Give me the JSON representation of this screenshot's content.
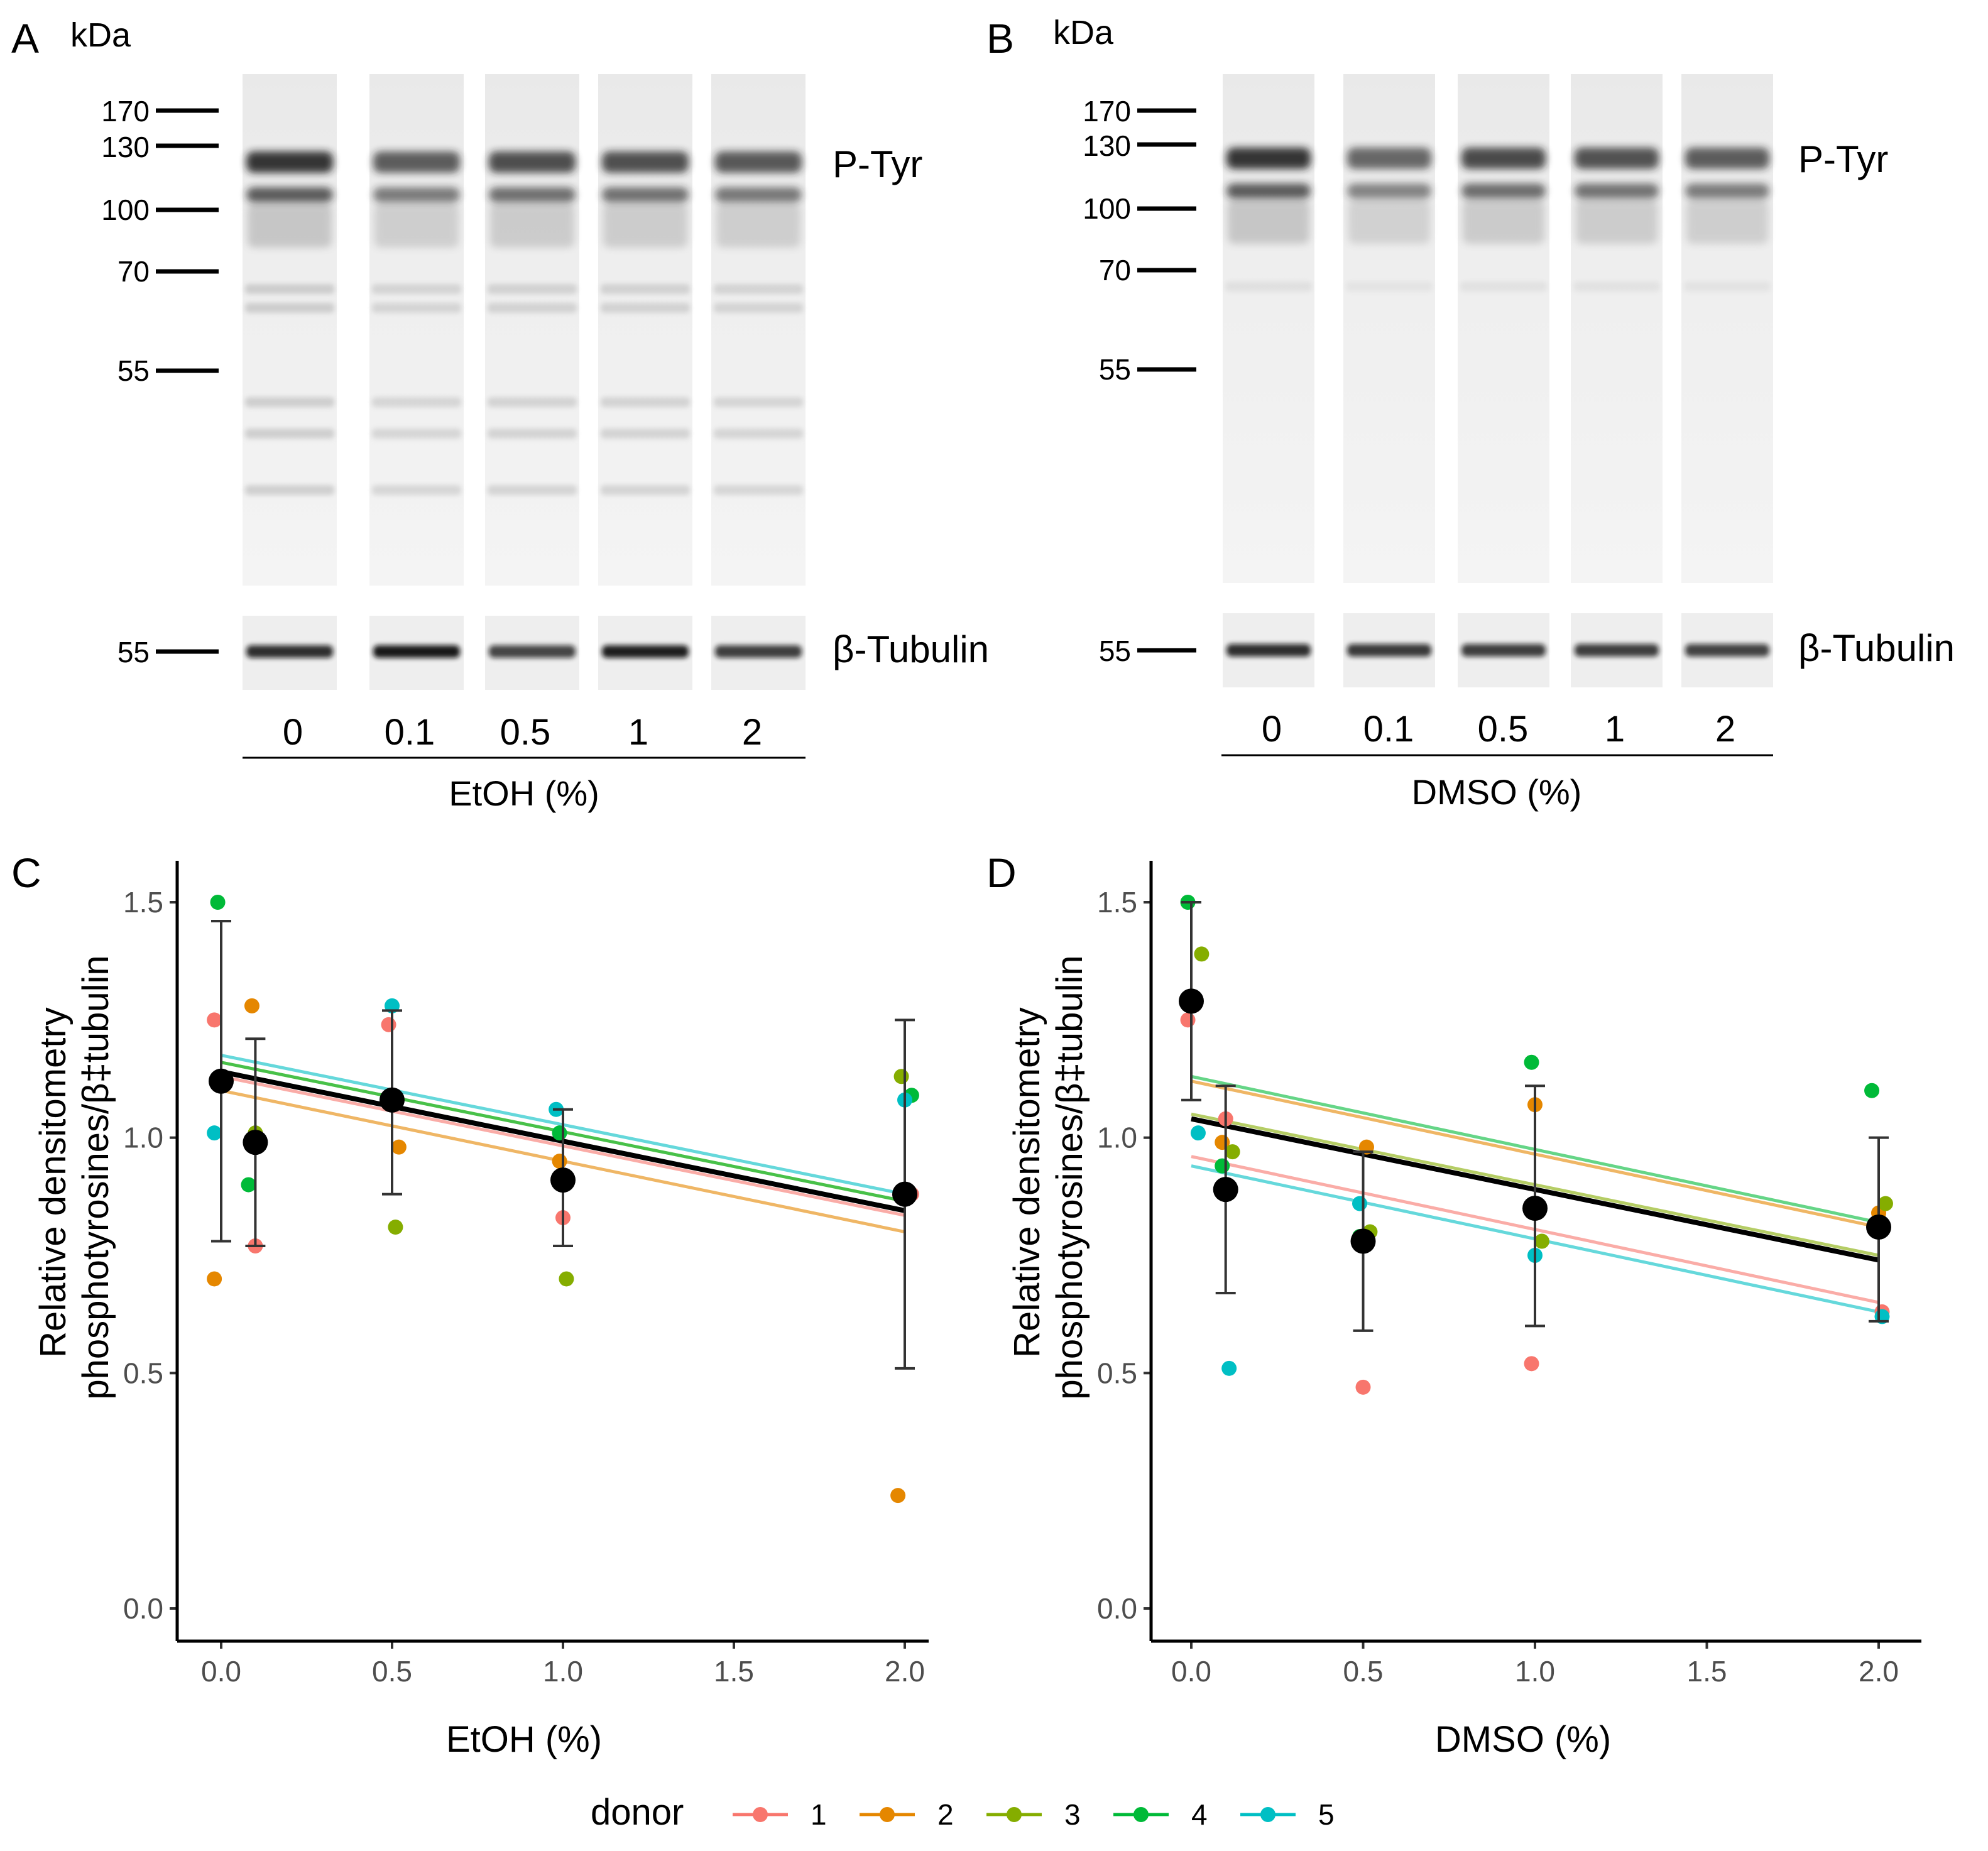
{
  "panels": {
    "A": "A",
    "B": "B",
    "C": "C",
    "D": "D"
  },
  "blots": [
    {
      "panel": "A",
      "kda_label": "kDa",
      "mw_markers": [
        "170",
        "130",
        "100",
        "70",
        "55"
      ],
      "tubulin_marker": "55",
      "upper_label": "P-Tyr",
      "lower_label": "β-Tubulin",
      "lanes": [
        "0",
        "0.1",
        "0.5",
        "1",
        "2"
      ],
      "condition": "EtOH (%)",
      "ptyr_intensity": [
        1.0,
        0.78,
        0.86,
        0.85,
        0.8
      ],
      "tubulin_intensity": [
        0.85,
        0.95,
        0.75,
        0.92,
        0.78
      ]
    },
    {
      "panel": "B",
      "kda_label": "kDa",
      "mw_markers": [
        "170",
        "130",
        "100",
        "70",
        "55"
      ],
      "tubulin_marker": "55",
      "upper_label": "P-Tyr",
      "lower_label": "β-Tubulin",
      "lanes": [
        "0",
        "0.1",
        "0.5",
        "1",
        "2"
      ],
      "condition": "DMSO (%)",
      "ptyr_intensity": [
        1.0,
        0.72,
        0.88,
        0.84,
        0.78
      ],
      "tubulin_intensity": [
        0.85,
        0.8,
        0.78,
        0.78,
        0.76
      ]
    }
  ],
  "legend": {
    "title": "donor",
    "items": [
      "1",
      "2",
      "3",
      "4",
      "5"
    ]
  },
  "colors": {
    "donor_1": "#F8766D",
    "donor_2": "#E58700",
    "donor_3": "#85AD00",
    "donor_4": "#00BA38",
    "donor_5": "#00BFC4",
    "mean": "#000000",
    "axis": "#000000",
    "tick_text": "#4d4d4d"
  },
  "chart_data": [
    {
      "panel": "C",
      "type": "scatter",
      "xlabel": "EtOH (%)",
      "ylabel": "Relative densitometry phosphotyrosines/β‡tubulin",
      "xlim": [
        -0.1,
        2.1
      ],
      "ylim": [
        -0.07,
        1.57
      ],
      "xticks": [
        "0.0",
        "0.5",
        "1.0",
        "1.5",
        "2.0"
      ],
      "yticks": [
        "0.0",
        "0.5",
        "1.0",
        "1.5"
      ],
      "xtick_values": [
        0,
        0.5,
        1,
        1.5,
        2
      ],
      "ytick_values": [
        0,
        0.5,
        1,
        1.5
      ],
      "series": [
        {
          "name": "1",
          "points": [
            [
              -0.02,
              1.25
            ],
            [
              0.1,
              0.77
            ],
            [
              0.49,
              1.24
            ],
            [
              1.0,
              0.83
            ],
            [
              2.02,
              0.88
            ]
          ],
          "fit": [
            1.13,
            0.835
          ]
        },
        {
          "name": "2",
          "points": [
            [
              -0.02,
              0.7
            ],
            [
              0.09,
              1.28
            ],
            [
              0.52,
              0.98
            ],
            [
              0.99,
              0.95
            ],
            [
              1.98,
              0.24
            ]
          ],
          "fit": [
            1.1,
            0.8
          ]
        },
        {
          "name": "3",
          "points": [
            [
              0.1,
              1.01
            ],
            [
              0.51,
              0.81
            ],
            [
              1.01,
              0.7
            ],
            [
              1.99,
              1.13
            ]
          ],
          "fit": [
            1.16,
            0.865
          ]
        },
        {
          "name": "4",
          "points": [
            [
              -0.01,
              1.5
            ],
            [
              0.08,
              0.9
            ],
            [
              0.51,
              1.08
            ],
            [
              0.99,
              1.01
            ],
            [
              2.02,
              1.09
            ]
          ],
          "fit": [
            1.16,
            0.865
          ]
        },
        {
          "name": "5",
          "points": [
            [
              -0.02,
              1.01
            ],
            [
              0.5,
              1.28
            ],
            [
              0.98,
              1.06
            ],
            [
              2.0,
              1.08
            ]
          ],
          "fit": [
            1.175,
            0.88
          ]
        }
      ],
      "means": [
        {
          "x": 0.0,
          "y": 1.12,
          "lo": 0.78,
          "hi": 1.46
        },
        {
          "x": 0.1,
          "y": 0.99,
          "lo": 0.77,
          "hi": 1.21
        },
        {
          "x": 0.5,
          "y": 1.08,
          "lo": 0.88,
          "hi": 1.27
        },
        {
          "x": 1.0,
          "y": 0.91,
          "lo": 0.77,
          "hi": 1.06
        },
        {
          "x": 2.0,
          "y": 0.88,
          "lo": 0.51,
          "hi": 1.25
        }
      ],
      "mean_fit": [
        1.14,
        0.845
      ]
    },
    {
      "panel": "D",
      "type": "scatter",
      "xlabel": "DMSO (%)",
      "ylabel": "Relative densitometry phosphotyrosines/β‡tubulin",
      "xlim": [
        -0.1,
        2.1
      ],
      "ylim": [
        -0.07,
        1.57
      ],
      "xticks": [
        "0.0",
        "0.5",
        "1.0",
        "1.5",
        "2.0"
      ],
      "yticks": [
        "0.0",
        "0.5",
        "1.0",
        "1.5"
      ],
      "xtick_values": [
        0,
        0.5,
        1,
        1.5,
        2
      ],
      "ytick_values": [
        0,
        0.5,
        1,
        1.5
      ],
      "series": [
        {
          "name": "1",
          "points": [
            [
              -0.01,
              1.25
            ],
            [
              0.1,
              1.04
            ],
            [
              0.5,
              0.47
            ],
            [
              0.99,
              0.52
            ],
            [
              2.01,
              0.63
            ]
          ],
          "fit": [
            0.96,
            0.65
          ]
        },
        {
          "name": "2",
          "points": [
            [
              0.09,
              0.99
            ],
            [
              0.51,
              0.98
            ],
            [
              1.0,
              1.07
            ],
            [
              2.0,
              0.84
            ]
          ],
          "fit": [
            1.12,
            0.81
          ]
        },
        {
          "name": "3",
          "points": [
            [
              0.03,
              1.39
            ],
            [
              0.12,
              0.97
            ],
            [
              0.52,
              0.8
            ],
            [
              1.02,
              0.78
            ],
            [
              2.02,
              0.86
            ]
          ],
          "fit": [
            1.05,
            0.75
          ]
        },
        {
          "name": "4",
          "points": [
            [
              -0.01,
              1.5
            ],
            [
              0.09,
              0.94
            ],
            [
              0.49,
              0.79
            ],
            [
              0.99,
              1.16
            ],
            [
              1.98,
              1.1
            ]
          ],
          "fit": [
            1.13,
            0.82
          ]
        },
        {
          "name": "5",
          "points": [
            [
              0.02,
              1.01
            ],
            [
              0.11,
              0.51
            ],
            [
              0.49,
              0.86
            ],
            [
              1.0,
              0.75
            ],
            [
              2.01,
              0.62
            ]
          ],
          "fit": [
            0.94,
            0.63
          ]
        }
      ],
      "means": [
        {
          "x": 0.0,
          "y": 1.29,
          "lo": 1.08,
          "hi": 1.5
        },
        {
          "x": 0.1,
          "y": 0.89,
          "lo": 0.67,
          "hi": 1.11
        },
        {
          "x": 0.5,
          "y": 0.78,
          "lo": 0.59,
          "hi": 0.97
        },
        {
          "x": 1.0,
          "y": 0.85,
          "lo": 0.6,
          "hi": 1.11
        },
        {
          "x": 2.0,
          "y": 0.81,
          "lo": 0.61,
          "hi": 1.0
        }
      ],
      "mean_fit": [
        1.04,
        0.74
      ]
    }
  ]
}
